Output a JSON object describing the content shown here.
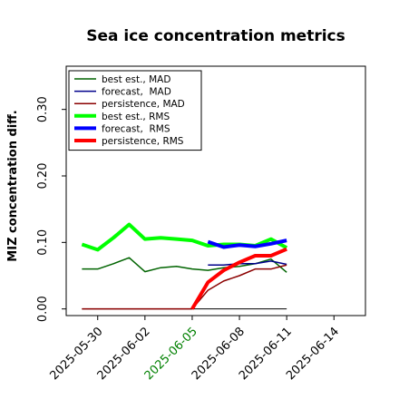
{
  "chart_data": {
    "type": "line",
    "title": "Sea ice concentration metrics",
    "xlabel": "",
    "ylabel": "MIZ concentration diff.",
    "ylim": [
      -0.01,
      0.365
    ],
    "y_ticks": [
      0.0,
      0.1,
      0.2,
      0.3
    ],
    "y_tick_labels": [
      "0.00",
      "0.10",
      "0.20",
      "0.30"
    ],
    "xlim": [
      "2025-05-28",
      "2025-06-16"
    ],
    "x_ticks": [
      "2025-05-30",
      "2025-06-02",
      "2025-06-05",
      "2025-06-08",
      "2025-06-11",
      "2025-06-14"
    ],
    "x_tick_colors": [
      "#000000",
      "#000000",
      "#008000",
      "#000000",
      "#000000",
      "#000000"
    ],
    "legend_position": "top-left",
    "grid": false,
    "series": [
      {
        "name": "best est., MAD",
        "color": "#006400",
        "width": 1.5,
        "x": [
          "2025-05-29",
          "2025-05-30",
          "2025-05-31",
          "2025-06-01",
          "2025-06-02",
          "2025-06-03",
          "2025-06-04",
          "2025-06-05",
          "2025-06-06",
          "2025-06-07",
          "2025-06-08",
          "2025-06-09",
          "2025-06-10",
          "2025-06-11"
        ],
        "values": [
          0.06,
          0.06,
          0.068,
          0.077,
          0.056,
          0.062,
          0.064,
          0.06,
          0.058,
          0.062,
          0.064,
          0.068,
          0.075,
          0.055
        ]
      },
      {
        "name": "forecast,  MAD",
        "color": "#00008b",
        "width": 1.5,
        "x": [
          "2025-06-06",
          "2025-06-07",
          "2025-06-08",
          "2025-06-09",
          "2025-06-10",
          "2025-06-11"
        ],
        "values": [
          0.066,
          0.066,
          0.068,
          0.068,
          0.072,
          0.067
        ]
      },
      {
        "name": "persistence, MAD",
        "color": "#8b0000",
        "width": 1.5,
        "x": [
          "2025-05-29",
          "2025-06-05",
          "2025-06-06",
          "2025-06-07",
          "2025-06-08",
          "2025-06-09",
          "2025-06-10",
          "2025-06-11"
        ],
        "values": [
          0.0,
          0.0,
          0.028,
          0.042,
          0.05,
          0.06,
          0.06,
          0.066
        ]
      },
      {
        "name": "best est., RMS",
        "color": "#00ff00",
        "width": 4,
        "x": [
          "2025-05-29",
          "2025-05-30",
          "2025-05-31",
          "2025-06-01",
          "2025-06-02",
          "2025-06-03",
          "2025-06-04",
          "2025-06-05",
          "2025-06-06",
          "2025-06-07",
          "2025-06-08",
          "2025-06-09",
          "2025-06-10",
          "2025-06-11"
        ],
        "values": [
          0.097,
          0.089,
          0.107,
          0.127,
          0.105,
          0.107,
          0.105,
          0.103,
          0.095,
          0.097,
          0.097,
          0.095,
          0.105,
          0.092
        ]
      },
      {
        "name": "forecast,  RMS",
        "color": "#0000ff",
        "width": 4,
        "x": [
          "2025-06-06",
          "2025-06-07",
          "2025-06-08",
          "2025-06-09",
          "2025-06-10",
          "2025-06-11"
        ],
        "values": [
          0.101,
          0.093,
          0.096,
          0.094,
          0.098,
          0.103
        ]
      },
      {
        "name": "persistence, RMS",
        "color": "#ff0000",
        "width": 4,
        "x": [
          "2025-06-05",
          "2025-06-06",
          "2025-06-07",
          "2025-06-08",
          "2025-06-09",
          "2025-06-10",
          "2025-06-11"
        ],
        "values": [
          0.0,
          0.04,
          0.058,
          0.07,
          0.08,
          0.08,
          0.09
        ]
      }
    ],
    "baseline": {
      "color": "#000000",
      "x": [
        "2025-05-29",
        "2025-06-11"
      ],
      "values": [
        0.0,
        0.0
      ]
    }
  }
}
